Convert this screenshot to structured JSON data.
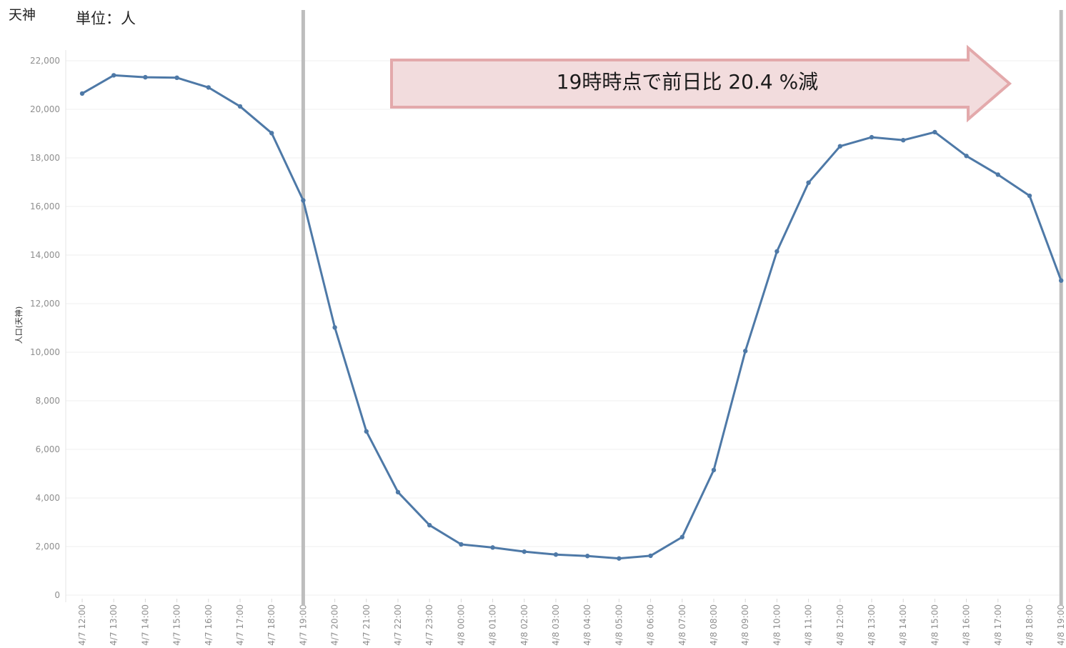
{
  "header": {
    "place": "天神",
    "unit": "単位：人"
  },
  "chart_data": {
    "type": "line",
    "ylabel": "人口(天神)",
    "ylim": [
      0,
      22000
    ],
    "yticks": [
      0,
      2000,
      4000,
      6000,
      8000,
      10000,
      12000,
      14000,
      16000,
      18000,
      20000,
      22000
    ],
    "ytick_labels": [
      "0",
      "2,000",
      "4,000",
      "6,000",
      "8,000",
      "10,000",
      "12,000",
      "14,000",
      "16,000",
      "18,000",
      "20,000",
      "22,000"
    ],
    "categories": [
      "4/7 12:00",
      "4/7 13:00",
      "4/7 14:00",
      "4/7 15:00",
      "4/7 16:00",
      "4/7 17:00",
      "4/7 18:00",
      "4/7 19:00",
      "4/7 20:00",
      "4/7 21:00",
      "4/7 22:00",
      "4/7 23:00",
      "4/8 00:00",
      "4/8 01:00",
      "4/8 02:00",
      "4/8 03:00",
      "4/8 04:00",
      "4/8 05:00",
      "4/8 06:00",
      "4/8 07:00",
      "4/8 08:00",
      "4/8 09:00",
      "4/8 10:00",
      "4/8 11:00",
      "4/8 12:00",
      "4/8 13:00",
      "4/8 14:00",
      "4/8 15:00",
      "4/8 16:00",
      "4/8 17:00",
      "4/8 18:00",
      "4/8 19:00"
    ],
    "values": [
      20650,
      21400,
      21320,
      21300,
      20900,
      20120,
      19020,
      16250,
      11020,
      6740,
      4240,
      2880,
      2090,
      1960,
      1790,
      1670,
      1610,
      1510,
      1620,
      2390,
      5150,
      10050,
      14150,
      16980,
      18480,
      18850,
      18730,
      19060,
      18080,
      17310,
      16440,
      12950
    ],
    "color": "#4e79a7",
    "reference_lines": [
      "4/7 19:00",
      "4/8 19:00"
    ],
    "reference_line_color": "#bdbdbd",
    "grid": true,
    "annotation": {
      "text": "19時時点で前日比 20.4 %減",
      "fill": "#f2dcdd",
      "stroke": "#e3a9ab"
    }
  }
}
